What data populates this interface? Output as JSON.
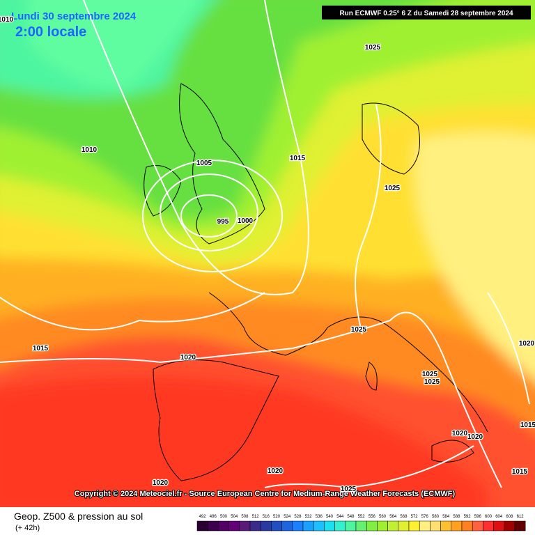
{
  "header": {
    "date": "Lundi 30 septembre 2024",
    "time": "2:00 locale",
    "run": "Run ECMWF 0.25° 6 Z du Samedi 28 septembre 2024"
  },
  "isobar_labels": [
    "1010",
    "1025",
    "1010",
    "1005",
    "1015",
    "1025",
    "995",
    "1000",
    "1025",
    "1015",
    "1020",
    "1025",
    "1025",
    "1020",
    "1020",
    "1020",
    "1015",
    "1020",
    "1020",
    "1025",
    "1015"
  ],
  "copyright": "Copyright © 2024 Meteociel.fr - Source European Centre for Medium-Range Weather Forecasts (ECMWF)",
  "legend": {
    "title": "Geop. Z500 & pression au sol",
    "subtitle": "(+ 42h)",
    "values": [
      "492",
      "496",
      "500",
      "504",
      "508",
      "512",
      "516",
      "520",
      "524",
      "528",
      "532",
      "536",
      "540",
      "544",
      "548",
      "552",
      "556",
      "560",
      "564",
      "568",
      "572",
      "576",
      "580",
      "584",
      "588",
      "592",
      "596",
      "600",
      "604",
      "608",
      "612"
    ],
    "colors": [
      "#2a0033",
      "#3d004d",
      "#520066",
      "#66007a",
      "#5a1a7a",
      "#3a2a8a",
      "#2a3aa0",
      "#1f4fc0",
      "#1a66e0",
      "#1a80ff",
      "#1aa0ff",
      "#1ac0ff",
      "#1ae0f0",
      "#33f0d0",
      "#4df5a0",
      "#66f070",
      "#80f040",
      "#a0f030",
      "#c0f030",
      "#e0f030",
      "#fff030",
      "#fff080",
      "#ffe070",
      "#ffc030",
      "#ffa020",
      "#ff8020",
      "#ff6040",
      "#ff3030",
      "#e01010",
      "#a00000",
      "#600000"
    ]
  }
}
